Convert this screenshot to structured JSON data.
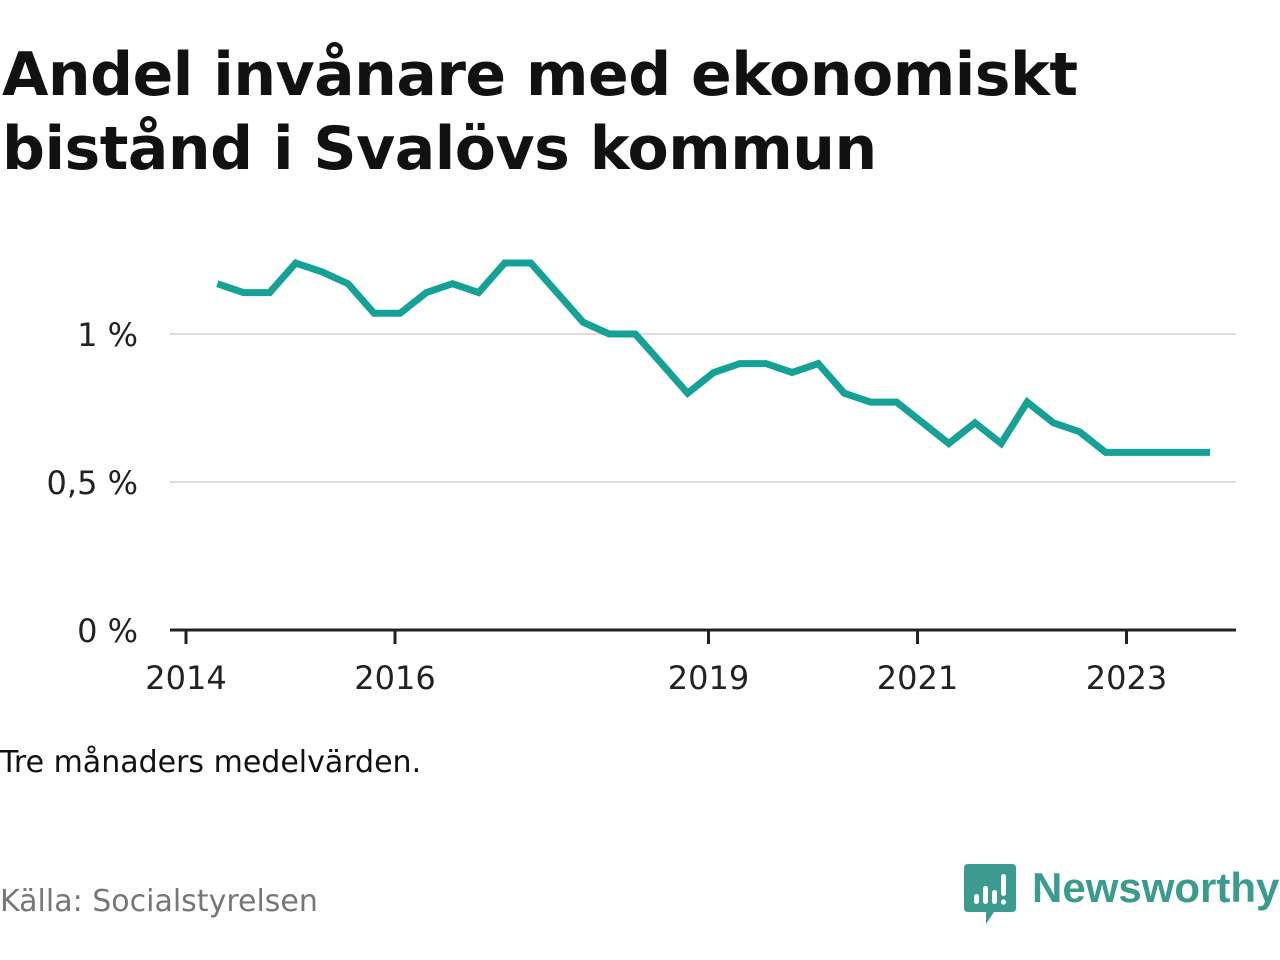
{
  "title": "Andel invånare med ekonomiskt bistånd i Svalövs kommun",
  "note": "Tre månaders medelvärden.",
  "source": "Källa: Socialstyrelsen",
  "brand": {
    "name": "Newsworthy",
    "icon": "newsworthy-logo-icon",
    "color": "#3a9b8e"
  },
  "chart_data": {
    "type": "line",
    "title": "Andel invånare med ekonomiskt bistånd i Svalövs kommun",
    "xlabel": "",
    "ylabel": "",
    "ylim": [
      0,
      1.3
    ],
    "xlim": [
      2014,
      2024.2
    ],
    "y_ticks": [
      {
        "value": 0,
        "label": "0 %"
      },
      {
        "value": 0.5,
        "label": "0,5 %"
      },
      {
        "value": 1,
        "label": "1 %"
      }
    ],
    "x_ticks": [
      {
        "value": 2014,
        "label": "2014"
      },
      {
        "value": 2016,
        "label": "2016"
      },
      {
        "value": 2019,
        "label": "2019"
      },
      {
        "value": 2021,
        "label": "2021"
      },
      {
        "value": 2023,
        "label": "2023"
      }
    ],
    "grid": true,
    "line_color": "#16a196",
    "series": [
      {
        "x": [
          2014.3,
          2014.55,
          2014.8,
          2015.05,
          2015.3,
          2015.55,
          2015.8,
          2016.05,
          2016.3,
          2016.55,
          2016.8,
          2017.05,
          2017.3,
          2017.55,
          2017.8,
          2018.05,
          2018.3,
          2018.55,
          2018.8,
          2019.05,
          2019.3,
          2019.55,
          2019.8,
          2020.05,
          2020.3,
          2020.55,
          2020.8,
          2021.05,
          2021.3,
          2021.55,
          2021.8,
          2022.05,
          2022.3,
          2022.55,
          2022.8,
          2023.05,
          2023.3,
          2023.55,
          2023.8
        ],
        "values": [
          1.17,
          1.14,
          1.14,
          1.24,
          1.21,
          1.17,
          1.07,
          1.07,
          1.14,
          1.17,
          1.14,
          1.24,
          1.24,
          1.14,
          1.04,
          1.0,
          1.0,
          0.9,
          0.8,
          0.87,
          0.9,
          0.9,
          0.87,
          0.9,
          0.8,
          0.77,
          0.77,
          0.7,
          0.63,
          0.7,
          0.63,
          0.77,
          0.7,
          0.67,
          0.6,
          0.6,
          0.6,
          0.6,
          0.6
        ]
      }
    ]
  }
}
